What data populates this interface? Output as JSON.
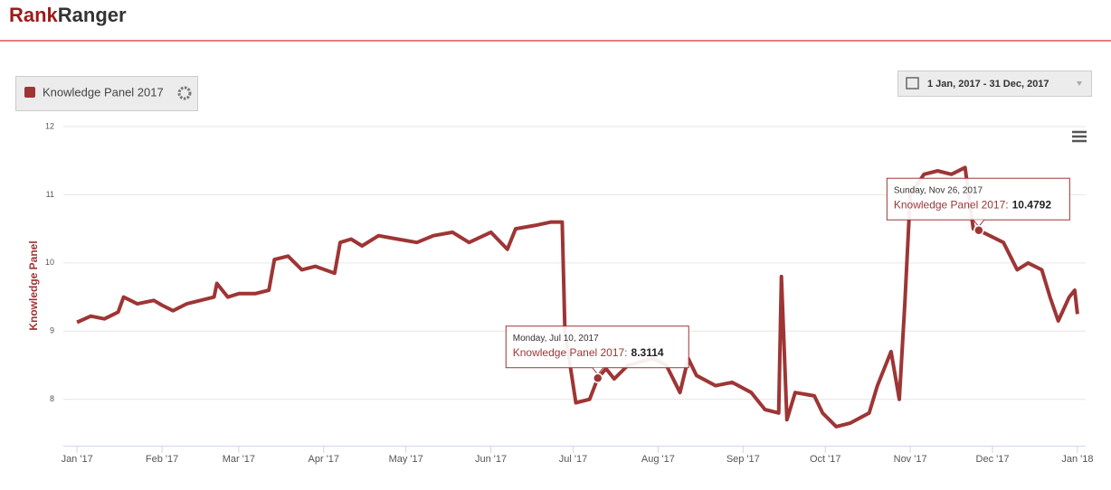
{
  "header": {
    "logo_part1": "Rank",
    "logo_part2": "Ranger"
  },
  "legend_button": {
    "label": "Knowledge Panel 2017"
  },
  "date_range": {
    "label": "1 Jan, 2017 - 31 Dec, 2017"
  },
  "chart_data": {
    "type": "line",
    "y_label": "Knowledge Panel",
    "x": [
      "2017-01-01",
      "2017-01-06",
      "2017-01-11",
      "2017-01-16",
      "2017-01-18",
      "2017-01-23",
      "2017-01-29",
      "2017-02-01",
      "2017-02-05",
      "2017-02-10",
      "2017-02-15",
      "2017-02-20",
      "2017-02-21",
      "2017-02-25",
      "2017-03-01",
      "2017-03-07",
      "2017-03-12",
      "2017-03-14",
      "2017-03-19",
      "2017-03-24",
      "2017-03-29",
      "2017-04-05",
      "2017-04-07",
      "2017-04-11",
      "2017-04-15",
      "2017-04-21",
      "2017-04-28",
      "2017-05-05",
      "2017-05-11",
      "2017-05-18",
      "2017-05-24",
      "2017-06-01",
      "2017-06-07",
      "2017-06-10",
      "2017-06-17",
      "2017-06-23",
      "2017-06-27",
      "2017-06-28",
      "2017-07-02",
      "2017-07-07",
      "2017-07-10",
      "2017-07-13",
      "2017-07-16",
      "2017-07-21",
      "2017-07-30",
      "2017-08-04",
      "2017-08-09",
      "2017-08-12",
      "2017-08-15",
      "2017-08-22",
      "2017-08-28",
      "2017-09-04",
      "2017-09-09",
      "2017-09-14",
      "2017-09-15",
      "2017-09-17",
      "2017-09-20",
      "2017-09-27",
      "2017-09-30",
      "2017-10-05",
      "2017-10-10",
      "2017-10-17",
      "2017-10-20",
      "2017-10-25",
      "2017-10-28",
      "2017-10-30",
      "2017-11-01",
      "2017-11-06",
      "2017-11-11",
      "2017-11-16",
      "2017-11-21",
      "2017-11-24",
      "2017-11-26",
      "2017-11-30",
      "2017-12-05",
      "2017-12-10",
      "2017-12-14",
      "2017-12-19",
      "2017-12-22",
      "2017-12-25",
      "2017-12-29",
      "2017-12-31",
      "2018-01-01"
    ],
    "series": [
      {
        "name": "Knowledge Panel 2017",
        "color": "#9e3535",
        "values": [
          9.13,
          9.22,
          9.18,
          9.28,
          9.5,
          9.4,
          9.45,
          9.38,
          9.3,
          9.4,
          9.45,
          9.5,
          9.7,
          9.5,
          9.55,
          9.55,
          9.6,
          10.05,
          10.1,
          9.9,
          9.95,
          9.85,
          10.3,
          10.35,
          10.25,
          10.4,
          10.35,
          10.3,
          10.4,
          10.45,
          10.3,
          10.45,
          10.2,
          10.5,
          10.55,
          10.6,
          10.6,
          9.0,
          7.95,
          8.0,
          8.3114,
          8.45,
          8.3,
          8.5,
          8.6,
          8.5,
          8.1,
          8.6,
          8.35,
          8.2,
          8.25,
          8.1,
          7.85,
          7.8,
          9.8,
          7.7,
          8.1,
          8.05,
          7.8,
          7.6,
          7.65,
          7.8,
          8.2,
          8.7,
          8.0,
          9.4,
          11.0,
          11.3,
          11.35,
          11.3,
          11.4,
          10.5,
          10.4792,
          10.4,
          10.3,
          9.9,
          10.0,
          9.9,
          9.5,
          9.15,
          9.5,
          9.6,
          9.25
        ]
      }
    ],
    "xlim": [
      "2016-12-27",
      "2018-01-04"
    ],
    "xticks": [
      {
        "value": "2017-01-01",
        "label": "Jan '17"
      },
      {
        "value": "2017-02-01",
        "label": "Feb '17"
      },
      {
        "value": "2017-03-01",
        "label": "Mar '17"
      },
      {
        "value": "2017-04-01",
        "label": "Apr '17"
      },
      {
        "value": "2017-05-01",
        "label": "May '17"
      },
      {
        "value": "2017-06-01",
        "label": "Jun '17"
      },
      {
        "value": "2017-07-01",
        "label": "Jul '17"
      },
      {
        "value": "2017-08-01",
        "label": "Aug '17"
      },
      {
        "value": "2017-09-01",
        "label": "Sep '17"
      },
      {
        "value": "2017-10-01",
        "label": "Oct '17"
      },
      {
        "value": "2017-11-01",
        "label": "Nov '17"
      },
      {
        "value": "2017-12-01",
        "label": "Dec '17"
      },
      {
        "value": "2018-01-01",
        "label": "Jan '18"
      }
    ],
    "ylim": [
      7.32,
      12
    ],
    "yticks": [
      8,
      9,
      10,
      11,
      12
    ],
    "grid": true,
    "annotations": [
      {
        "date": "Monday, Jul 10, 2017",
        "label": "Knowledge Panel 2017:",
        "x": "2017-07-10",
        "value": 8.3114
      },
      {
        "date": "Sunday, Nov 26, 2017",
        "label": "Knowledge Panel 2017:",
        "x": "2017-11-26",
        "value": 10.4792
      }
    ]
  }
}
